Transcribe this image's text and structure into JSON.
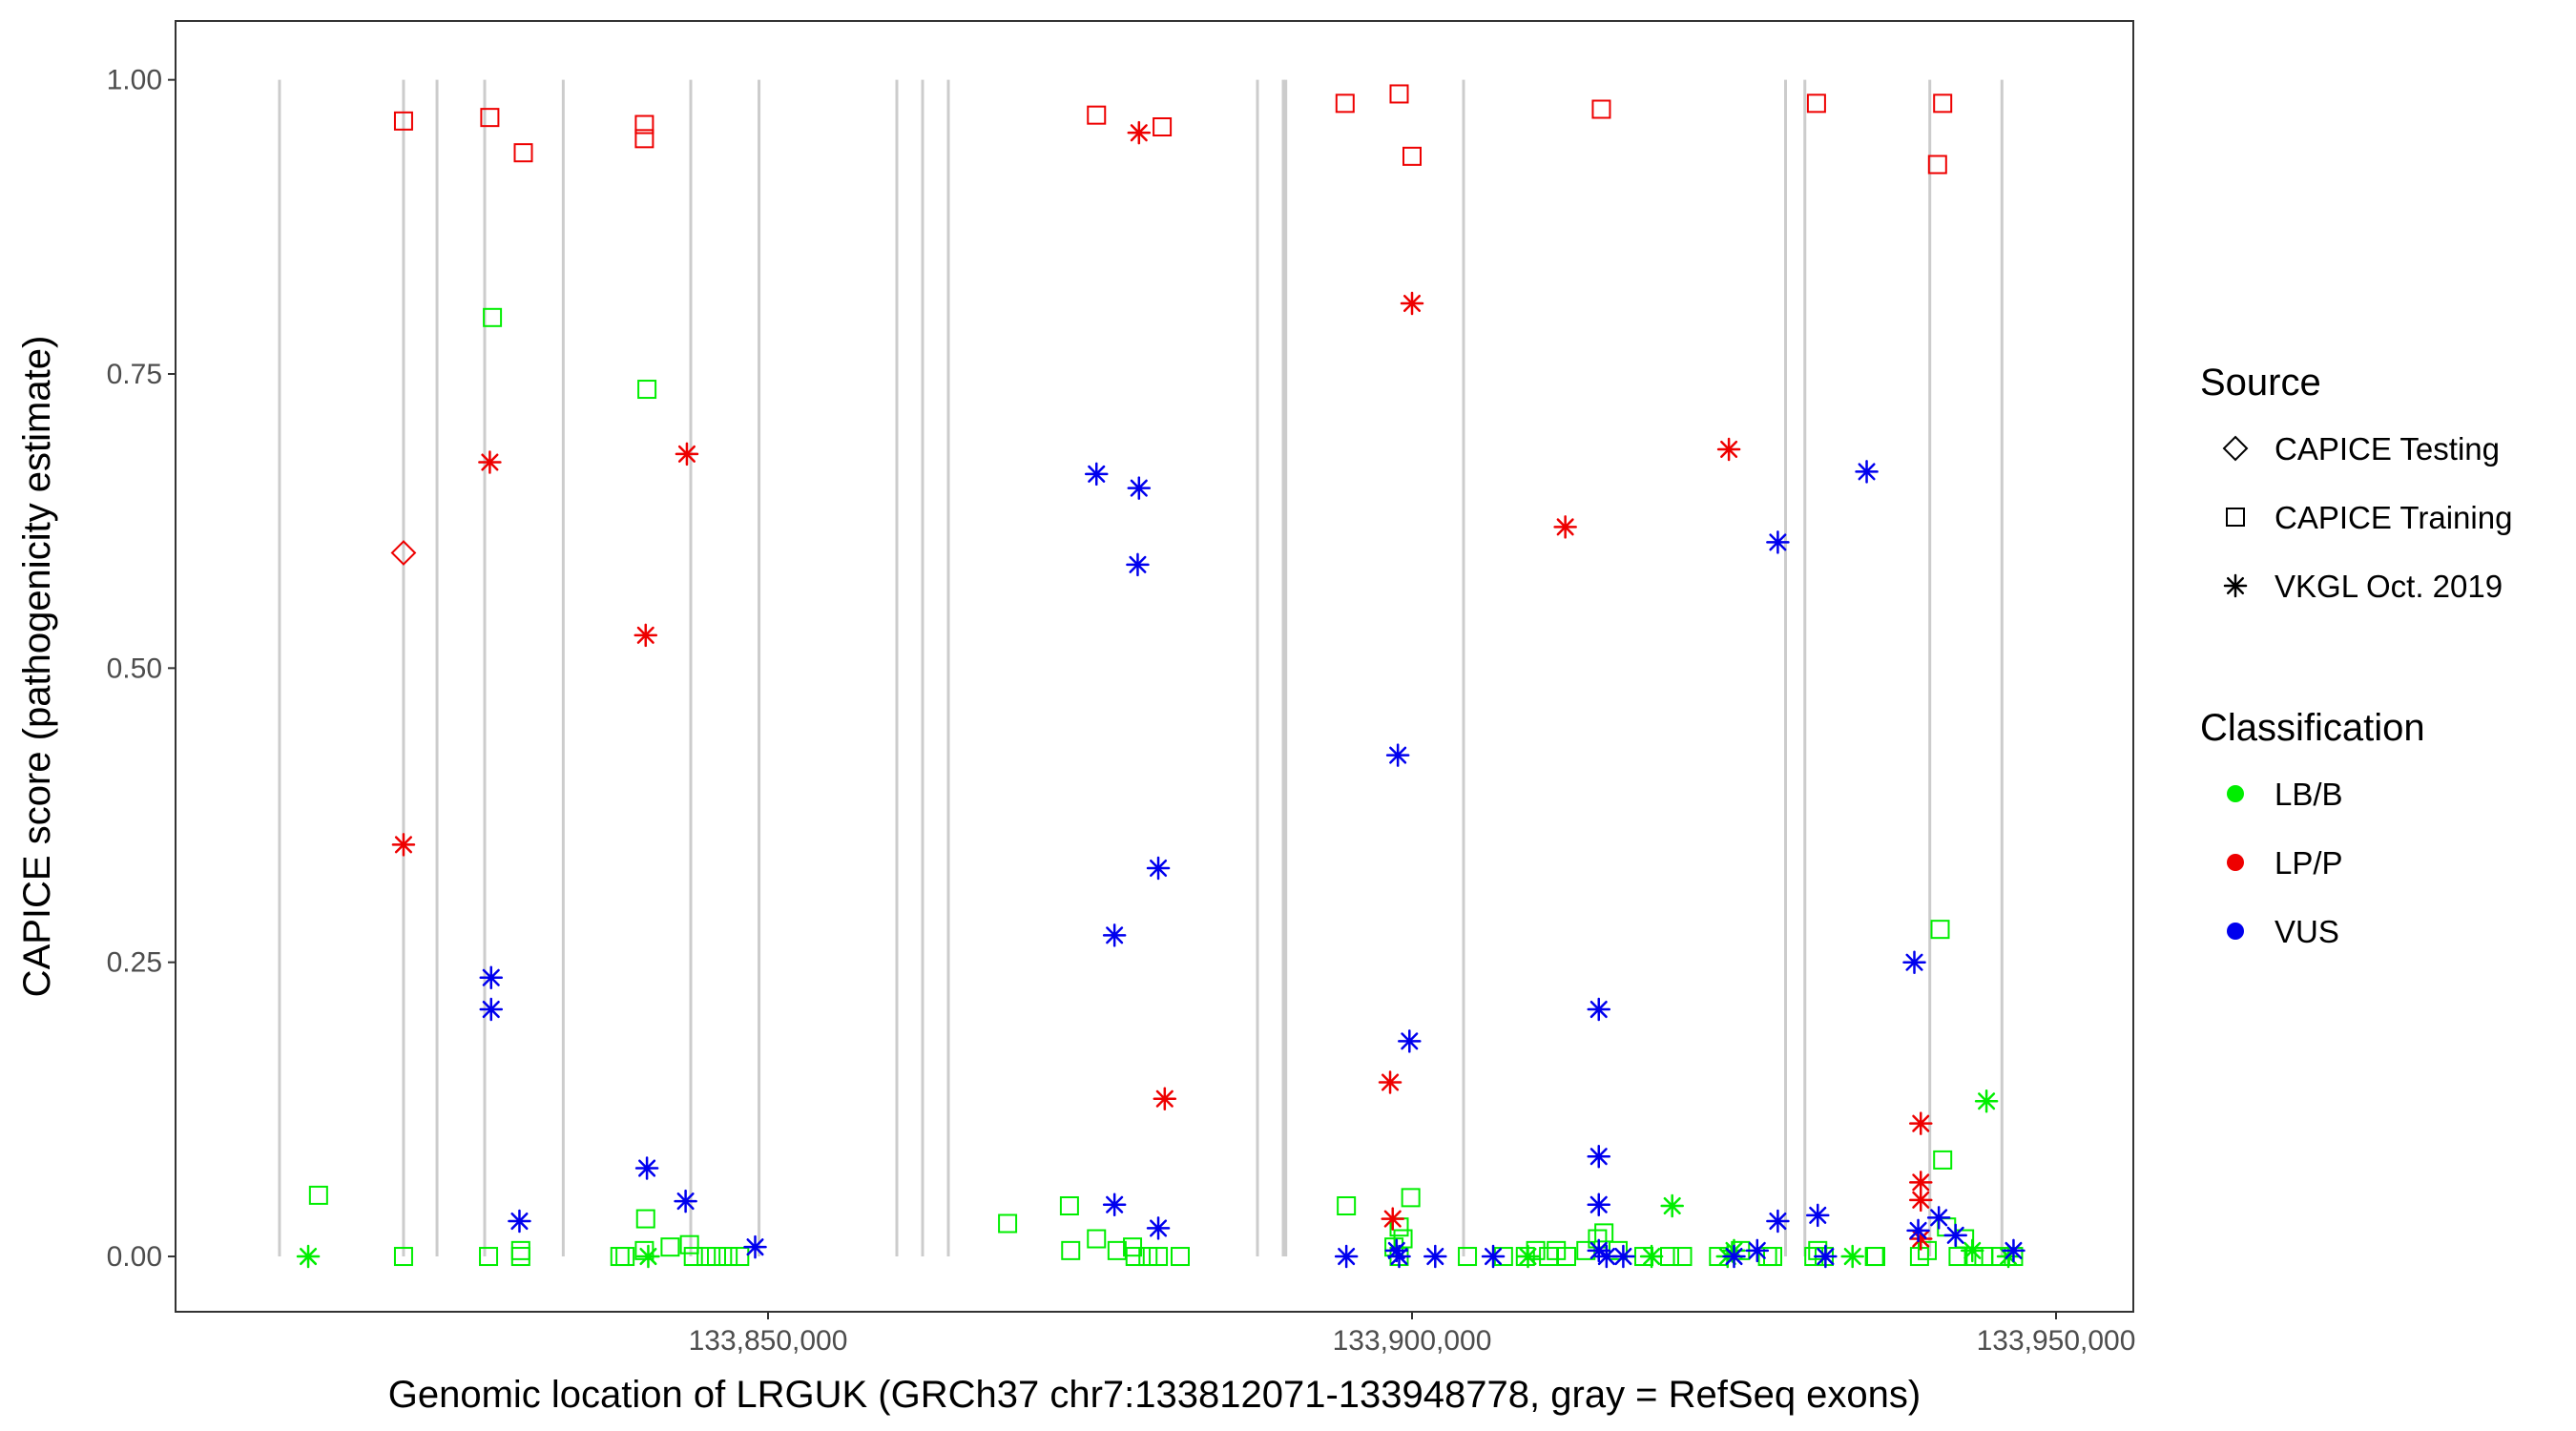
{
  "chart_data": {
    "type": "scatter",
    "xlabel": "Genomic location of LRGUK (GRCh37 chr7:133812071-133948778, gray = RefSeq exons)",
    "ylabel": "CAPICE score (pathogenicity estimate)",
    "xlim": [
      133804000,
      133956000
    ],
    "ylim": [
      -0.047,
      1.05
    ],
    "x_ticks": [
      133850000,
      133900000,
      133950000
    ],
    "x_tick_labels": [
      "133,850,000",
      "133,900,000",
      "133,950,000"
    ],
    "y_ticks": [
      0,
      0.25,
      0.5,
      0.75,
      1.0
    ],
    "y_tick_labels": [
      "0.00",
      "0.25",
      "0.50",
      "0.75",
      "1.00"
    ],
    "grid": false,
    "exons": [
      133812071,
      133821700,
      133824300,
      133828000,
      133834100,
      133844000,
      133849300,
      133860000,
      133862000,
      133864000,
      133888000,
      133890000,
      133890200,
      133904000,
      133929000,
      133930500,
      133940200,
      133945800
    ],
    "colors": {
      "LB/B": "#00ee00",
      "LP/P": "#ee0000",
      "VUS": "#0000ee",
      "exon": "#cccccc"
    },
    "legend": {
      "placement": "right",
      "source_title": "Source",
      "source_items": [
        {
          "label": "CAPICE Testing",
          "shape": "diamond"
        },
        {
          "label": "CAPICE Training",
          "shape": "square"
        },
        {
          "label": "VKGL Oct. 2019",
          "shape": "asterisk"
        }
      ],
      "class_title": "Classification",
      "class_items": [
        {
          "label": "LB/B",
          "color": "#00ee00"
        },
        {
          "label": "LP/P",
          "color": "#ee0000"
        },
        {
          "label": "VUS",
          "color": "#0000ee"
        }
      ]
    },
    "series": [
      {
        "source": "CAPICE Testing",
        "classification": "LP/P",
        "points": [
          [
            133821700,
            0.598
          ]
        ]
      },
      {
        "source": "CAPICE Training",
        "classification": "LP/P",
        "points": [
          [
            133821700,
            0.965
          ],
          [
            133828400,
            0.968
          ],
          [
            133831000,
            0.938
          ],
          [
            133840400,
            0.962
          ],
          [
            133840400,
            0.95
          ],
          [
            133875500,
            0.97
          ],
          [
            133880600,
            0.96
          ],
          [
            133894800,
            0.98
          ],
          [
            133899000,
            0.988
          ],
          [
            133900000,
            0.935
          ],
          [
            133914700,
            0.975
          ],
          [
            133931400,
            0.98
          ],
          [
            133940800,
            0.928
          ],
          [
            133941200,
            0.98
          ]
        ]
      },
      {
        "source": "CAPICE Training",
        "classification": "LB/B",
        "points": [
          [
            133815100,
            0.052
          ],
          [
            133821700,
            0.0
          ],
          [
            133828300,
            0.0
          ],
          [
            133828600,
            0.798
          ],
          [
            133830800,
            0.0
          ],
          [
            133830800,
            0.005
          ],
          [
            133838500,
            0.0
          ],
          [
            133838900,
            0.0
          ],
          [
            133840400,
            0.005
          ],
          [
            133840500,
            0.032
          ],
          [
            133840600,
            0.737
          ],
          [
            133842400,
            0.008
          ],
          [
            133843900,
            0.01
          ],
          [
            133844200,
            0.0
          ],
          [
            133845200,
            0.0
          ],
          [
            133846000,
            0.0
          ],
          [
            133846900,
            0.0
          ],
          [
            133847800,
            0.0
          ],
          [
            133868600,
            0.028
          ],
          [
            133873400,
            0.043
          ],
          [
            133873500,
            0.005
          ],
          [
            133875500,
            0.015
          ],
          [
            133877100,
            0.005
          ],
          [
            133878300,
            0.008
          ],
          [
            133878500,
            0.0
          ],
          [
            133879500,
            0.0
          ],
          [
            133880300,
            0.0
          ],
          [
            133882000,
            0.0
          ],
          [
            133894900,
            0.043
          ],
          [
            133898600,
            0.008
          ],
          [
            133899000,
            0.025
          ],
          [
            133899300,
            0.015
          ],
          [
            133899900,
            0.05
          ],
          [
            133899000,
            0.0
          ],
          [
            133904300,
            0.0
          ],
          [
            133907100,
            0.0
          ],
          [
            133908800,
            0.0
          ],
          [
            133909600,
            0.005
          ],
          [
            133910600,
            0.0
          ],
          [
            133911200,
            0.005
          ],
          [
            133912000,
            0.0
          ],
          [
            133913500,
            0.005
          ],
          [
            133914400,
            0.015
          ],
          [
            133914900,
            0.02
          ],
          [
            133916000,
            0.005
          ],
          [
            133918000,
            0.0
          ],
          [
            133920000,
            0.0
          ],
          [
            133921000,
            0.0
          ],
          [
            133923800,
            0.0
          ],
          [
            133925500,
            0.005
          ],
          [
            133927600,
            0.0
          ],
          [
            133928000,
            0.0
          ],
          [
            133931200,
            0.0
          ],
          [
            133931500,
            0.005
          ],
          [
            133932000,
            0.0
          ],
          [
            133935900,
            0.0
          ],
          [
            133936000,
            0.0
          ],
          [
            133939400,
            0.0
          ],
          [
            133940000,
            0.005
          ],
          [
            133941000,
            0.278
          ],
          [
            133941200,
            0.082
          ],
          [
            133941500,
            0.025
          ],
          [
            133942400,
            0.0
          ],
          [
            133942900,
            0.015
          ],
          [
            133943600,
            0.0
          ],
          [
            133944400,
            0.0
          ],
          [
            133945700,
            0.0
          ],
          [
            133946700,
            0.0
          ]
        ]
      },
      {
        "source": "VKGL Oct. 2019",
        "classification": "LB/B",
        "points": [
          [
            133814300,
            0.0
          ],
          [
            133840700,
            0.0
          ],
          [
            133909000,
            0.0
          ],
          [
            133918600,
            0.0
          ],
          [
            133920200,
            0.043
          ],
          [
            133924500,
            0.0
          ],
          [
            133925000,
            0.005
          ],
          [
            133934200,
            0.0
          ],
          [
            133943500,
            0.005
          ],
          [
            133944600,
            0.132
          ],
          [
            133946300,
            0.0
          ]
        ]
      },
      {
        "source": "VKGL Oct. 2019",
        "classification": "LP/P",
        "points": [
          [
            133821700,
            0.35
          ],
          [
            133828400,
            0.675
          ],
          [
            133840500,
            0.528
          ],
          [
            133843700,
            0.682
          ],
          [
            133878800,
            0.955
          ],
          [
            133880800,
            0.134
          ],
          [
            133898300,
            0.148
          ],
          [
            133898500,
            0.032
          ],
          [
            133900000,
            0.81
          ],
          [
            133911900,
            0.62
          ],
          [
            133924600,
            0.686
          ],
          [
            133939500,
            0.113
          ],
          [
            133939500,
            0.063
          ],
          [
            133939500,
            0.048
          ],
          [
            133939500,
            0.015
          ]
        ]
      },
      {
        "source": "VKGL Oct. 2019",
        "classification": "VUS",
        "points": [
          [
            133828500,
            0.237
          ],
          [
            133828500,
            0.21
          ],
          [
            133830700,
            0.03
          ],
          [
            133840600,
            0.075
          ],
          [
            133843600,
            0.047
          ],
          [
            133849000,
            0.008
          ],
          [
            133875500,
            0.665
          ],
          [
            133876900,
            0.273
          ],
          [
            133876900,
            0.044
          ],
          [
            133878800,
            0.653
          ],
          [
            133878700,
            0.588
          ],
          [
            133880300,
            0.33
          ],
          [
            133880300,
            0.024
          ],
          [
            133894900,
            0.0
          ],
          [
            133898900,
            0.426
          ],
          [
            133898800,
            0.005
          ],
          [
            133899000,
            0.0
          ],
          [
            133899800,
            0.183
          ],
          [
            133901800,
            0.0
          ],
          [
            133906300,
            0.0
          ],
          [
            133914500,
            0.21
          ],
          [
            133914500,
            0.085
          ],
          [
            133914500,
            0.044
          ],
          [
            133914500,
            0.005
          ],
          [
            133915100,
            0.0
          ],
          [
            133916400,
            0.0
          ],
          [
            133925000,
            0.0
          ],
          [
            133926800,
            0.005
          ],
          [
            133928400,
            0.607
          ],
          [
            133928400,
            0.03
          ],
          [
            133931500,
            0.035
          ],
          [
            133932100,
            0.0
          ],
          [
            133935300,
            0.667
          ],
          [
            133939000,
            0.25
          ],
          [
            133939300,
            0.022
          ],
          [
            133940900,
            0.033
          ],
          [
            133942200,
            0.018
          ],
          [
            133946700,
            0.005
          ]
        ]
      }
    ]
  }
}
